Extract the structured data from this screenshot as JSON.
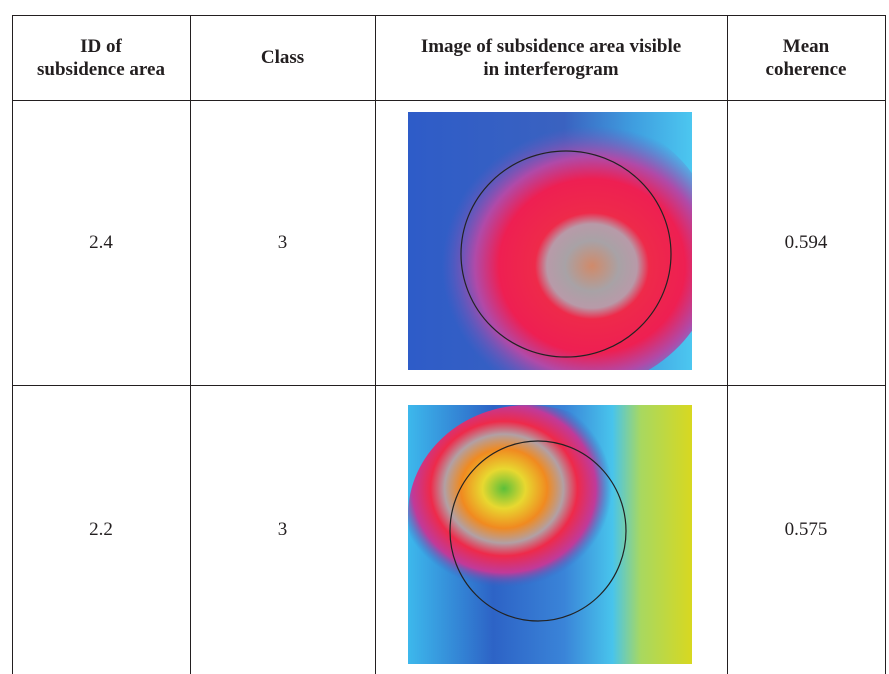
{
  "table": {
    "header": [
      [
        "ID of",
        "subsidence area"
      ],
      [
        "Class"
      ],
      [
        "Image of subsidence area visible",
        "in interferogram"
      ],
      [
        "Mean",
        "coherence"
      ]
    ],
    "rows": [
      [
        "2.4",
        "3",
        "0.594"
      ],
      [
        "2.2",
        "3",
        "0.575"
      ]
    ]
  }
}
